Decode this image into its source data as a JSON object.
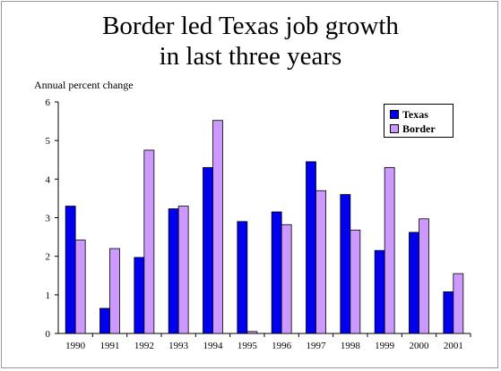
{
  "chart_data": {
    "type": "bar",
    "title": [
      "Border led Texas job growth",
      "in last three years"
    ],
    "ylabel": "Annual percent change",
    "xlabel": "",
    "ylim": [
      0,
      6
    ],
    "yticks": [
      0,
      1,
      2,
      3,
      4,
      5,
      6
    ],
    "categories": [
      "1990",
      "1991",
      "1992",
      "1993",
      "1994",
      "1995",
      "1996",
      "1997",
      "1998",
      "1999",
      "2000",
      "2001"
    ],
    "series": [
      {
        "name": "Texas",
        "color": "#0000ee",
        "values": [
          3.3,
          0.65,
          1.97,
          3.23,
          4.3,
          2.9,
          3.15,
          4.45,
          3.6,
          2.15,
          2.62,
          1.08
        ]
      },
      {
        "name": "Border",
        "color": "#cc99ff",
        "values": [
          2.42,
          2.2,
          4.75,
          3.3,
          5.52,
          0.05,
          2.82,
          3.7,
          2.68,
          4.3,
          2.97,
          1.55
        ]
      }
    ],
    "legend": "top-right",
    "grid": false
  }
}
